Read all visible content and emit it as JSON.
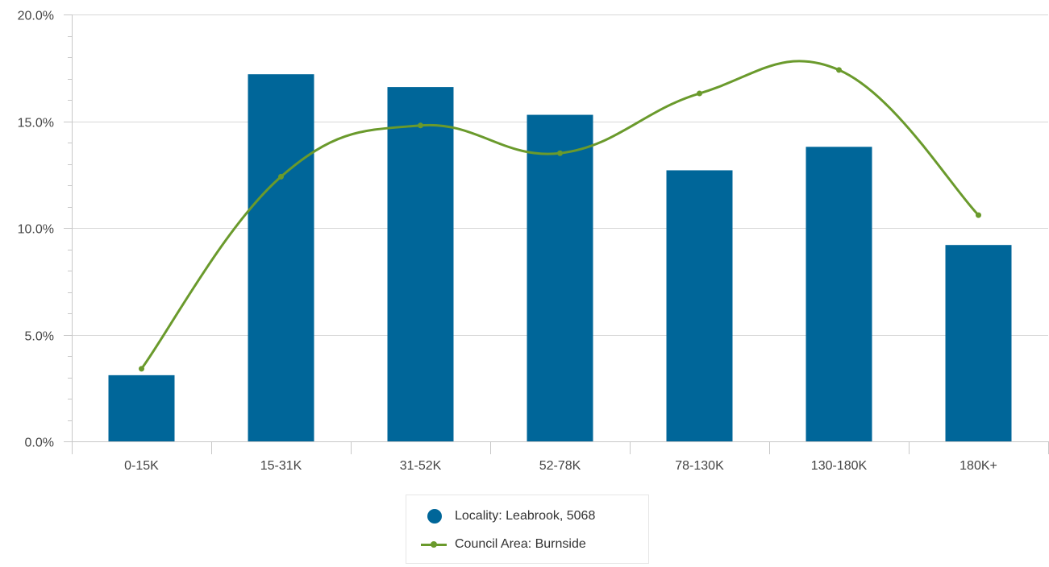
{
  "chart_data": {
    "type": "bar",
    "categories": [
      "0-15K",
      "15-31K",
      "31-52K",
      "52-78K",
      "78-130K",
      "130-180K",
      "180K+"
    ],
    "series": [
      {
        "name": "Locality: Leabrook, 5068",
        "type": "bar",
        "color": "#006699",
        "values": [
          3.1,
          17.2,
          16.6,
          15.3,
          12.7,
          13.8,
          9.2
        ]
      },
      {
        "name": "Council Area: Burnside",
        "type": "line",
        "color": "#6a9a2c",
        "values": [
          3.4,
          12.4,
          14.8,
          13.5,
          16.3,
          17.4,
          10.6
        ]
      }
    ],
    "ylim": [
      0,
      20
    ],
    "yticks": [
      0,
      5,
      10,
      15,
      20
    ],
    "ytick_labels": [
      "0.0%",
      "5.0%",
      "10.0%",
      "15.0%",
      "20.0%"
    ],
    "grid": true,
    "legend_position": "bottom-center"
  }
}
